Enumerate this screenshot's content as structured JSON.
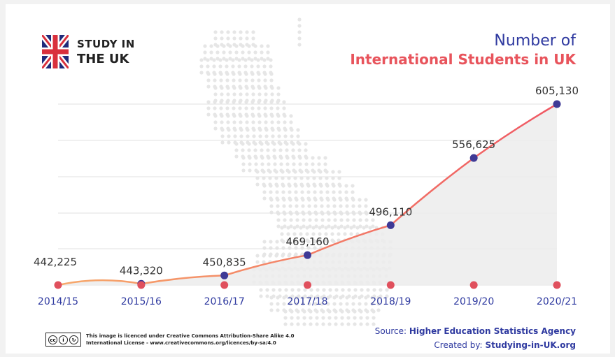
{
  "brand": {
    "line1": "STUDY IN",
    "line2": "THE UK",
    "flag_icon": "uk-flag-icon"
  },
  "title": {
    "line1": "Number of",
    "line2": "International Students in UK"
  },
  "colors": {
    "title_blue": "#2f3aa0",
    "title_red": "#e8545c",
    "line_start": "#f7a96b",
    "line_end": "#ef5763",
    "point": "#3f3a96",
    "baseline_dot": "#e0505d",
    "area": "#ececec",
    "grid": "#e2e2e2",
    "axis_label": "#2f3aa0"
  },
  "chart_data": {
    "type": "line",
    "title": "Number of International Students in UK",
    "categories": [
      "2014/15",
      "2015/16",
      "2016/17",
      "2017/18",
      "2018/19",
      "2019/20",
      "2020/21"
    ],
    "series": [
      {
        "values": [
          442225,
          443320,
          450835,
          469160,
          496110,
          556625,
          605130
        ]
      }
    ],
    "data_labels": [
      "442,225",
      "443,320",
      "450,835",
      "469,160",
      "496,110",
      "556,625",
      "605,130"
    ],
    "fill": "area",
    "grid": true
  },
  "footer": {
    "license_line1": "This image is licenced under Creative Commons Attribution-Share Alike 4.0",
    "license_line2": "International License - www.creativecommons.org/licences/by-sa/4.0",
    "cc_badge_icon": "cc-by-sa-icon",
    "source_label": "Source:",
    "source_value": "Higher Education Statistics Agency",
    "created_label": "Created by:",
    "created_value": "Studying-in-UK.org"
  }
}
